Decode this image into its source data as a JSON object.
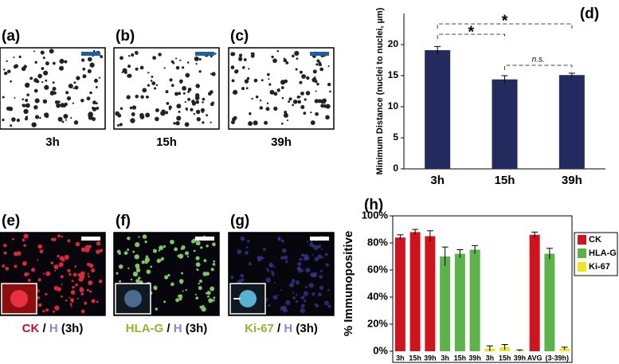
{
  "image_panels": [
    {
      "label": "(a)",
      "caption": [
        {
          "text": "3h",
          "color": "#000000"
        }
      ],
      "style": "bright"
    },
    {
      "label": "(b)",
      "caption": [
        {
          "text": "15h",
          "color": "#000000"
        }
      ],
      "style": "bright"
    },
    {
      "label": "(c)",
      "caption": [
        {
          "text": "39h",
          "color": "#000000"
        }
      ],
      "style": "bright"
    },
    {
      "label": "(e)",
      "caption": [
        {
          "text": "CK",
          "color": "#c8102e"
        },
        {
          "text": "/",
          "color": "#000000"
        },
        {
          "text": "H",
          "color": "#8c86c8"
        },
        {
          "text": "(3h)",
          "color": "#000000"
        }
      ],
      "style": "red"
    },
    {
      "label": "(f)",
      "caption": [
        {
          "text": "HLA-G",
          "color": "#8db830"
        },
        {
          "text": "/",
          "color": "#000000"
        },
        {
          "text": "H",
          "color": "#8c86c8"
        },
        {
          "text": "(3h)",
          "color": "#000000"
        }
      ],
      "style": "green"
    },
    {
      "label": "(g)",
      "caption": [
        {
          "text": "Ki-67",
          "color": "#8db830"
        },
        {
          "text": "/",
          "color": "#000000"
        },
        {
          "text": "H",
          "color": "#8c86c8"
        },
        {
          "text": "(3h)",
          "color": "#000000"
        }
      ],
      "style": "blue"
    }
  ],
  "chart_data": [
    {
      "type": "bar",
      "panel_label": "(d)",
      "ylabel": "Minimum Distance (nuclei to nuclei, µm)",
      "categories": [
        "3h",
        "15h",
        "39h"
      ],
      "values": [
        19.1,
        14.4,
        15.1
      ],
      "errors": [
        0.6,
        0.6,
        0.3
      ],
      "color": "#232a5e",
      "ylim": [
        0,
        25
      ],
      "yticks": [
        0,
        5,
        10,
        15,
        20
      ],
      "annotations": [
        "*",
        "*",
        "n.s."
      ]
    },
    {
      "type": "grouped-bar",
      "panel_label": "(h)",
      "ylabel": "% Immunopositive",
      "categories": [
        "3h",
        "15h",
        "39h",
        "3h",
        "15h",
        "39h",
        "3h",
        "15h",
        "39h",
        "AVG",
        "(3-39h)",
        null
      ],
      "series": [
        {
          "name": "CK",
          "color": "#d0141e",
          "values": [
            84,
            88,
            85,
            null,
            null,
            null,
            null,
            null,
            null,
            86,
            null,
            null
          ],
          "errors": [
            2,
            2,
            4,
            null,
            null,
            null,
            null,
            null,
            null,
            2,
            null,
            null
          ]
        },
        {
          "name": "HLA-G",
          "color": "#5cb34a",
          "values": [
            null,
            null,
            null,
            70,
            72,
            75,
            null,
            null,
            null,
            null,
            72,
            null
          ],
          "errors": [
            null,
            null,
            null,
            7,
            3,
            3,
            null,
            null,
            null,
            null,
            4,
            null
          ]
        },
        {
          "name": "Ki-67",
          "color": "#f2e51f",
          "values": [
            null,
            null,
            null,
            null,
            null,
            null,
            2,
            3,
            0.5,
            null,
            null,
            2
          ],
          "errors": [
            null,
            null,
            null,
            null,
            null,
            null,
            2,
            2,
            0.5,
            null,
            null,
            1
          ]
        }
      ],
      "ylim": [
        0,
        100
      ],
      "yticks": [
        {
          "value": 0,
          "label": "0%"
        },
        {
          "value": 20,
          "label": "20%"
        },
        {
          "value": 40,
          "label": "40%"
        },
        {
          "value": 60,
          "label": "60%"
        },
        {
          "value": 80,
          "label": "80%"
        },
        {
          "value": 100,
          "label": "100%"
        }
      ],
      "legend": "top-right"
    }
  ]
}
